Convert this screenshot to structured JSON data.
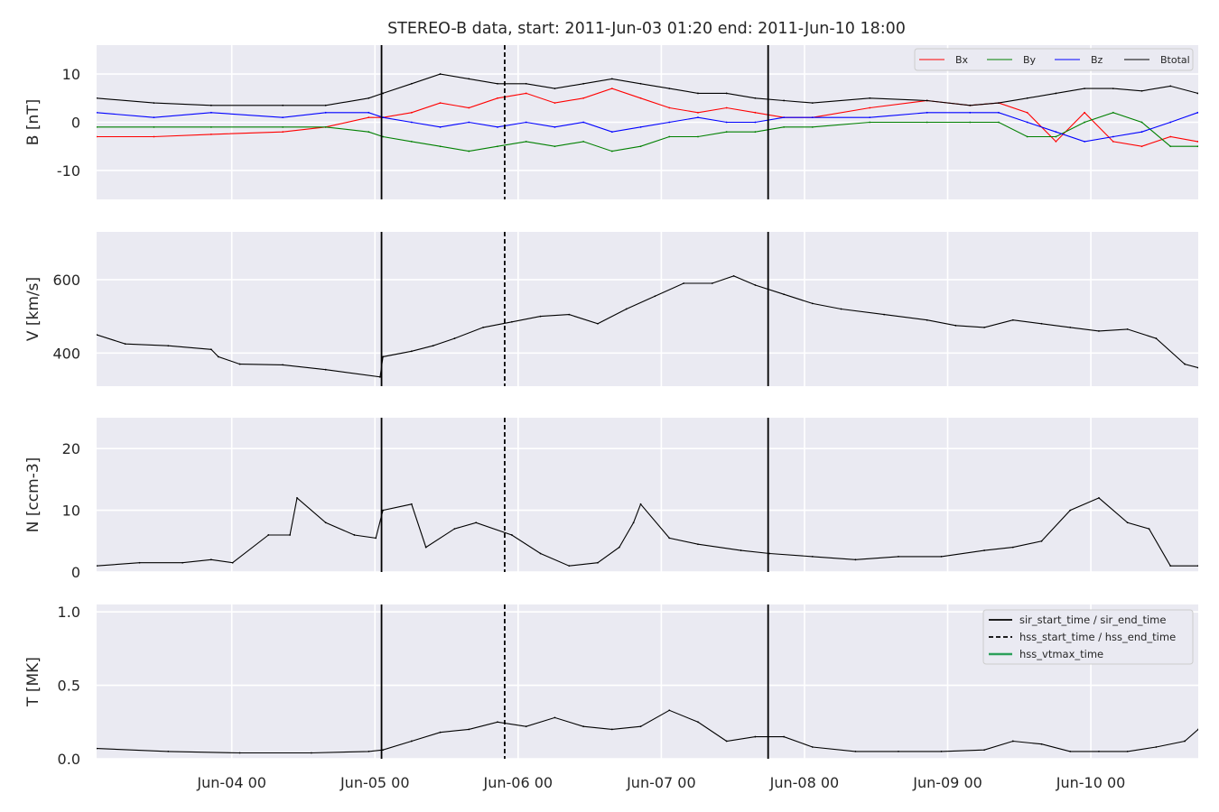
{
  "figure": {
    "title": "STEREO-B data, start: 2011-Jun-03 01:20  end: 2011-Jun-10 18:00"
  },
  "colors": {
    "panel_bg": "#eaeaf2",
    "grid": "#ffffff",
    "bx": "#ff0000",
    "by": "#008000",
    "bz": "#0000ff",
    "btotal": "#000000",
    "hss_vtmax": "#2ca05a"
  },
  "chart_data": [
    {
      "type": "line",
      "ylabel": "B [nT]",
      "ylim": [
        -16,
        16
      ],
      "yticks": [
        -10,
        0,
        10
      ],
      "xlim": [
        0,
        7.694
      ],
      "xticks": [
        0.944,
        1.944,
        2.944,
        3.944,
        4.944,
        5.944,
        6.944
      ],
      "xticklabels": [
        "Jun-04 00",
        "Jun-05 00",
        "Jun-06 00",
        "Jun-07 00",
        "Jun-08 00",
        "Jun-09 00",
        "Jun-10 00"
      ],
      "x_unit": "days since 2011-Jun-03 01:20",
      "grid": true,
      "legend_position": "top-right",
      "legend_columns": 4,
      "series": [
        {
          "name": "Bx",
          "color": "#ff0000",
          "x": [
            0,
            0.4,
            0.8,
            1.3,
            1.6,
            1.9,
            2.0,
            2.2,
            2.4,
            2.6,
            2.8,
            3.0,
            3.2,
            3.4,
            3.6,
            3.8,
            4.0,
            4.2,
            4.4,
            4.6,
            4.8,
            5.0,
            5.4,
            5.8,
            6.1,
            6.3,
            6.5,
            6.7,
            6.9,
            7.1,
            7.3,
            7.5,
            7.69
          ],
          "values": [
            -3,
            -3,
            -2.5,
            -2,
            -1,
            1,
            1,
            2,
            4,
            3,
            5,
            6,
            4,
            5,
            7,
            5,
            3,
            2,
            3,
            2,
            1,
            1,
            3,
            4.5,
            3.5,
            4,
            2,
            -4,
            2,
            -4,
            -5,
            -3,
            -4
          ]
        },
        {
          "name": "By",
          "color": "#008000",
          "x": [
            0,
            0.4,
            0.8,
            1.3,
            1.6,
            1.9,
            2.0,
            2.2,
            2.4,
            2.6,
            2.8,
            3.0,
            3.2,
            3.4,
            3.6,
            3.8,
            4.0,
            4.2,
            4.4,
            4.6,
            4.8,
            5.0,
            5.4,
            5.8,
            6.1,
            6.3,
            6.5,
            6.7,
            6.9,
            7.1,
            7.3,
            7.5,
            7.69
          ],
          "values": [
            -1,
            -1,
            -1,
            -1,
            -1,
            -2,
            -3,
            -4,
            -5,
            -6,
            -5,
            -4,
            -5,
            -4,
            -6,
            -5,
            -3,
            -3,
            -2,
            -2,
            -1,
            -1,
            0,
            0,
            0,
            0,
            -3,
            -3,
            0,
            2,
            0,
            -5,
            -5
          ]
        },
        {
          "name": "Bz",
          "color": "#0000ff",
          "x": [
            0,
            0.4,
            0.8,
            1.3,
            1.6,
            1.9,
            2.0,
            2.2,
            2.4,
            2.6,
            2.8,
            3.0,
            3.2,
            3.4,
            3.6,
            3.8,
            4.0,
            4.2,
            4.4,
            4.6,
            4.8,
            5.0,
            5.4,
            5.8,
            6.1,
            6.3,
            6.5,
            6.7,
            6.9,
            7.1,
            7.3,
            7.5,
            7.69
          ],
          "values": [
            2,
            1,
            2,
            1,
            2,
            2,
            1,
            0,
            -1,
            0,
            -1,
            0,
            -1,
            0,
            -2,
            -1,
            0,
            1,
            0,
            0,
            1,
            1,
            1,
            2,
            2,
            2,
            0,
            -2,
            -4,
            -3,
            -2,
            0,
            2
          ]
        },
        {
          "name": "Btotal",
          "color": "#000000",
          "x": [
            0,
            0.4,
            0.8,
            1.3,
            1.6,
            1.9,
            2.0,
            2.2,
            2.4,
            2.6,
            2.8,
            3.0,
            3.2,
            3.4,
            3.6,
            3.8,
            4.0,
            4.2,
            4.4,
            4.6,
            4.8,
            5.0,
            5.4,
            5.8,
            6.1,
            6.3,
            6.5,
            6.7,
            6.9,
            7.1,
            7.3,
            7.5,
            7.69
          ],
          "values": [
            5,
            4,
            3.5,
            3.5,
            3.5,
            5,
            6,
            8,
            10,
            9,
            8,
            8,
            7,
            8,
            9,
            8,
            7,
            6,
            6,
            5,
            4.5,
            4,
            5,
            4.5,
            3.5,
            4,
            5,
            6,
            7,
            7,
            6.5,
            7.5,
            6
          ]
        }
      ],
      "vlines": [
        {
          "x": 1.99,
          "style": "solid",
          "color": "#000000"
        },
        {
          "x": 2.85,
          "style": "dashed",
          "color": "#000000"
        },
        {
          "x": 4.69,
          "style": "solid",
          "color": "#000000"
        }
      ]
    },
    {
      "type": "line",
      "ylabel": "V [km/s]",
      "ylim": [
        310,
        730
      ],
      "yticks": [
        400,
        600
      ],
      "xlim": [
        0,
        7.694
      ],
      "xticks": [
        0.944,
        1.944,
        2.944,
        3.944,
        4.944,
        5.944,
        6.944
      ],
      "grid": true,
      "series": [
        {
          "name": "",
          "color": "#000000",
          "x": [
            0,
            0.2,
            0.5,
            0.8,
            0.85,
            1.0,
            1.3,
            1.6,
            1.98,
            2.0,
            2.2,
            2.35,
            2.5,
            2.7,
            2.9,
            3.1,
            3.3,
            3.5,
            3.7,
            3.9,
            4.1,
            4.3,
            4.45,
            4.6,
            4.8,
            5.0,
            5.2,
            5.5,
            5.8,
            6.0,
            6.2,
            6.4,
            6.6,
            6.8,
            7.0,
            7.2,
            7.4,
            7.6,
            7.694
          ],
          "values": [
            450,
            425,
            420,
            410,
            390,
            370,
            368,
            355,
            335,
            390,
            405,
            420,
            440,
            470,
            485,
            500,
            505,
            480,
            520,
            555,
            590,
            590,
            610,
            585,
            560,
            535,
            520,
            505,
            490,
            475,
            470,
            490,
            480,
            470,
            460,
            465,
            440,
            370,
            360
          ]
        }
      ],
      "vlines": [
        {
          "x": 1.99,
          "style": "solid",
          "color": "#000000"
        },
        {
          "x": 2.85,
          "style": "dashed",
          "color": "#000000"
        },
        {
          "x": 4.69,
          "style": "solid",
          "color": "#000000"
        }
      ]
    },
    {
      "type": "line",
      "ylabel": "N [ccm-3]",
      "ylim": [
        0,
        25
      ],
      "yticks": [
        0,
        10,
        20
      ],
      "xlim": [
        0,
        7.694
      ],
      "xticks": [
        0.944,
        1.944,
        2.944,
        3.944,
        4.944,
        5.944,
        6.944
      ],
      "grid": true,
      "series": [
        {
          "name": "",
          "color": "#000000",
          "x": [
            0,
            0.3,
            0.6,
            0.8,
            0.95,
            1.2,
            1.35,
            1.4,
            1.6,
            1.8,
            1.95,
            2.0,
            2.2,
            2.3,
            2.5,
            2.65,
            2.9,
            3.1,
            3.3,
            3.5,
            3.65,
            3.75,
            3.8,
            4.0,
            4.2,
            4.5,
            4.7,
            5.0,
            5.3,
            5.6,
            5.9,
            6.2,
            6.4,
            6.6,
            6.8,
            7.0,
            7.2,
            7.35,
            7.5,
            7.694
          ],
          "values": [
            1,
            1.5,
            1.5,
            2,
            1.5,
            6,
            6,
            12,
            8,
            6,
            5.5,
            10,
            11,
            4,
            7,
            8,
            6,
            3,
            1,
            1.5,
            4,
            8,
            11,
            5.5,
            4.5,
            3.5,
            3,
            2.5,
            2,
            2.5,
            2.5,
            3.5,
            4,
            5,
            10,
            12,
            8,
            7,
            1,
            1
          ]
        }
      ],
      "vlines": [
        {
          "x": 1.99,
          "style": "solid",
          "color": "#000000"
        },
        {
          "x": 2.85,
          "style": "dashed",
          "color": "#000000"
        },
        {
          "x": 4.69,
          "style": "solid",
          "color": "#000000"
        }
      ]
    },
    {
      "type": "line",
      "ylabel": "T [MK]",
      "ylim": [
        0,
        1.05
      ],
      "yticks": [
        0.0,
        0.5,
        1.0
      ],
      "xlim": [
        0,
        7.694
      ],
      "xticks": [
        0.944,
        1.944,
        2.944,
        3.944,
        4.944,
        5.944,
        6.944
      ],
      "grid": true,
      "legend_position": "top-right",
      "legend_entries": [
        {
          "label": "sir_start_time / sir_end_time",
          "style": "solid",
          "color": "#000000"
        },
        {
          "label": "hss_start_time / hss_end_time",
          "style": "dashed",
          "color": "#000000"
        },
        {
          "label": "hss_vtmax_time",
          "style": "solid",
          "color": "#2ca05a"
        }
      ],
      "series": [
        {
          "name": "",
          "color": "#000000",
          "x": [
            0,
            0.5,
            1.0,
            1.5,
            1.9,
            2.0,
            2.2,
            2.4,
            2.6,
            2.8,
            3.0,
            3.2,
            3.4,
            3.6,
            3.8,
            4.0,
            4.2,
            4.4,
            4.6,
            4.8,
            5.0,
            5.3,
            5.6,
            5.9,
            6.2,
            6.4,
            6.6,
            6.8,
            7.0,
            7.2,
            7.4,
            7.6,
            7.694
          ],
          "values": [
            0.07,
            0.05,
            0.04,
            0.04,
            0.05,
            0.06,
            0.12,
            0.18,
            0.2,
            0.25,
            0.22,
            0.28,
            0.22,
            0.2,
            0.22,
            0.33,
            0.25,
            0.12,
            0.15,
            0.15,
            0.08,
            0.05,
            0.05,
            0.05,
            0.06,
            0.12,
            0.1,
            0.05,
            0.05,
            0.05,
            0.08,
            0.12,
            0.2
          ]
        }
      ],
      "vlines": [
        {
          "x": 1.99,
          "style": "solid",
          "color": "#000000"
        },
        {
          "x": 2.85,
          "style": "dashed",
          "color": "#000000"
        },
        {
          "x": 4.69,
          "style": "solid",
          "color": "#000000"
        }
      ]
    }
  ]
}
